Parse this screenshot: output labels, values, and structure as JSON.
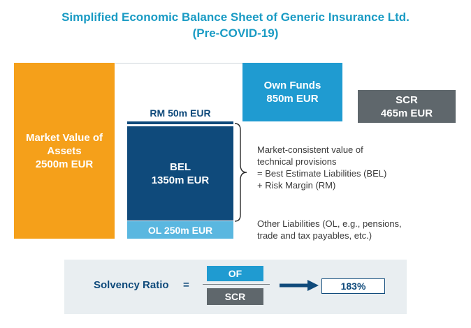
{
  "title": {
    "line1": "Simplified Economic Balance Sheet of Generic Insurance Ltd.",
    "line2": "(Pre-COVID-19)"
  },
  "assets": {
    "label_line1": "Market Value of",
    "label_line2": "Assets",
    "value": "2500m EUR"
  },
  "risk_margin": {
    "label": "RM 50m EUR"
  },
  "own_funds": {
    "label": "Own Funds",
    "value": "850m EUR"
  },
  "scr": {
    "label": "SCR",
    "value": "465m EUR"
  },
  "bel": {
    "label": "BEL",
    "value": "1350m EUR"
  },
  "other_liabilities": {
    "label": "OL 250m EUR"
  },
  "technical_provisions_note": [
    "Market-consistent value of",
    "technical provisions",
    "= Best Estimate Liabilities (BEL)",
    "+ Risk Margin (RM)"
  ],
  "other_liabilities_note": [
    "Other Liabilities (OL, e.g., pensions,",
    "trade and tax payables, etc.)"
  ],
  "solvency": {
    "label": "Solvency Ratio",
    "equals": "=",
    "numerator": "OF",
    "denominator": "SCR",
    "result": "183%"
  },
  "colors": {
    "orange": "#f5a01a",
    "dark_blue": "#0f4a7b",
    "light_blue": "#1f9bd1",
    "sky": "#5ab7e0",
    "grey": "#5f676c",
    "panel": "#e9eef1",
    "title": "#1a9bc4"
  }
}
